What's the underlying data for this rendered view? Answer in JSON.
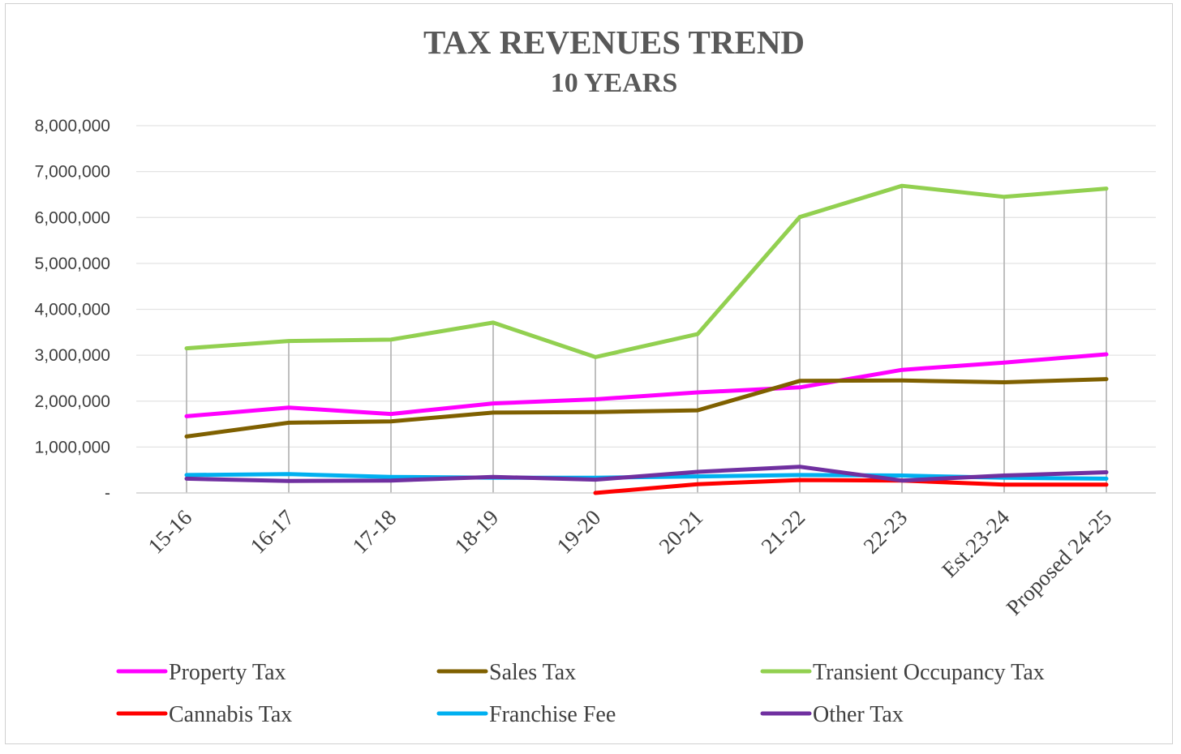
{
  "chart_data": {
    "type": "line",
    "title": "TAX REVENUES TREND",
    "subtitle": "10 YEARS",
    "xlabel": "",
    "ylabel": "",
    "categories": [
      "15-16",
      "16-17",
      "17-18",
      "18-19",
      "19-20",
      "20-21",
      "21-22",
      "22-23",
      "Est.23-24",
      "Proposed 24-25"
    ],
    "ylim": [
      0,
      8000000
    ],
    "yticks": [
      {
        "value": 0,
        "label": "-"
      },
      {
        "value": 1000000,
        "label": "1,000,000"
      },
      {
        "value": 2000000,
        "label": "2,000,000"
      },
      {
        "value": 3000000,
        "label": "3,000,000"
      },
      {
        "value": 4000000,
        "label": "4,000,000"
      },
      {
        "value": 5000000,
        "label": "5,000,000"
      },
      {
        "value": 6000000,
        "label": "6,000,000"
      },
      {
        "value": 7000000,
        "label": "7,000,000"
      },
      {
        "value": 8000000,
        "label": "8,000,000"
      }
    ],
    "grid": true,
    "drop_lines": true,
    "legend_position": "bottom",
    "series": [
      {
        "name": "Property Tax",
        "color": "#ff00ff",
        "values": [
          1670000,
          1860000,
          1720000,
          1950000,
          2040000,
          2190000,
          2300000,
          2680000,
          2840000,
          3020000
        ]
      },
      {
        "name": "Sales Tax",
        "color": "#7f6000",
        "values": [
          1230000,
          1530000,
          1560000,
          1750000,
          1760000,
          1800000,
          2440000,
          2450000,
          2410000,
          2480000
        ]
      },
      {
        "name": "Transient Occupancy Tax",
        "color": "#92d050",
        "values": [
          3150000,
          3310000,
          3340000,
          3710000,
          2960000,
          3460000,
          6010000,
          6690000,
          6450000,
          6630000
        ]
      },
      {
        "name": "Cannabis Tax",
        "color": "#ff0000",
        "values": [
          null,
          null,
          null,
          null,
          0,
          190000,
          280000,
          270000,
          180000,
          180000
        ]
      },
      {
        "name": "Franchise Fee",
        "color": "#00b0f0",
        "values": [
          390000,
          410000,
          350000,
          330000,
          330000,
          360000,
          390000,
          380000,
          330000,
          310000
        ]
      },
      {
        "name": "Other Tax",
        "color": "#7030a0",
        "values": [
          310000,
          260000,
          270000,
          350000,
          290000,
          460000,
          570000,
          270000,
          380000,
          450000
        ]
      }
    ]
  }
}
